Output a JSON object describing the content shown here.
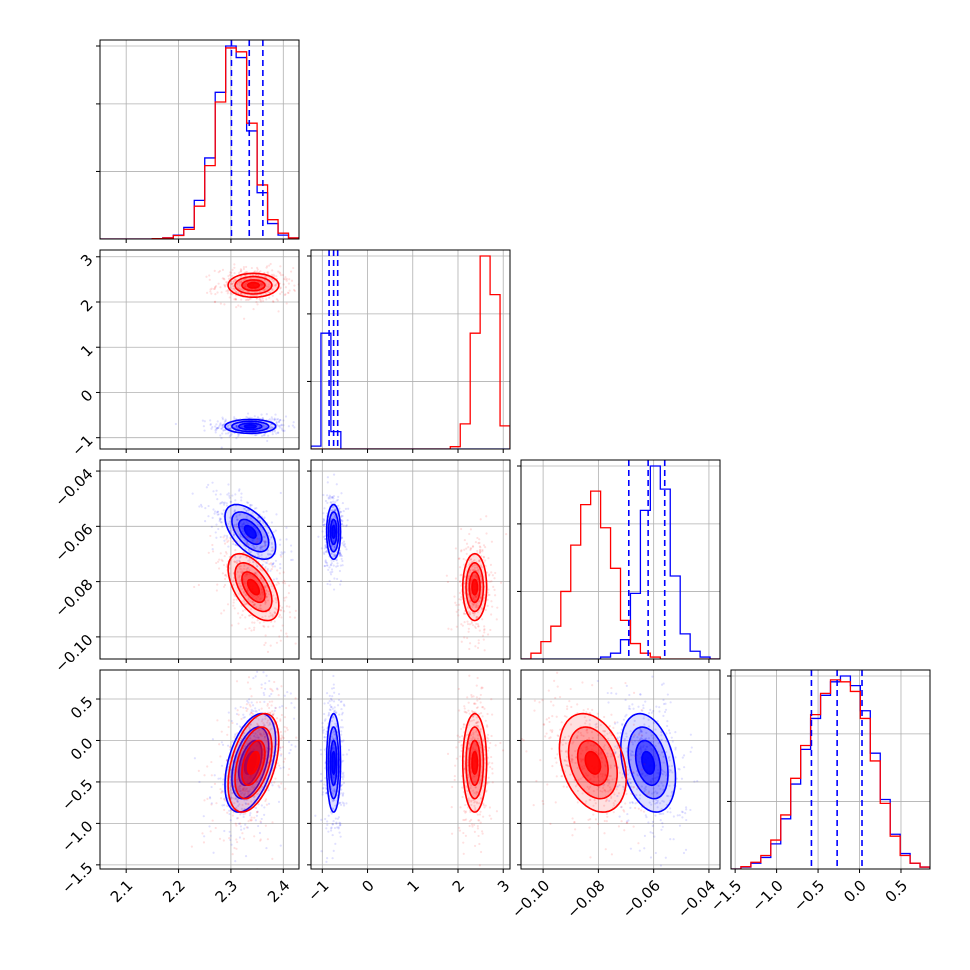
{
  "chart_data": {
    "type": "corner",
    "title": "",
    "grid": true,
    "legend": "none",
    "colors": {
      "series_a": "#0000ff",
      "series_b": "#ff0000",
      "grid": "#b0b0b0"
    },
    "parameters": [
      {
        "key": "p0",
        "label": "",
        "range": [
          2.05,
          2.43
        ],
        "ticks": [
          2.1,
          2.2,
          2.3,
          2.4
        ],
        "tick_labels": [
          "2.1",
          "2.2",
          "2.3",
          "2.4"
        ]
      },
      {
        "key": "p1",
        "label": "",
        "range": [
          -1.25,
          3.15
        ],
        "ticks": [
          -1,
          0,
          1,
          2,
          3
        ],
        "tick_labels": [
          "−1",
          "0",
          "1",
          "2",
          "3"
        ]
      },
      {
        "key": "p2",
        "label": "",
        "range": [
          -0.108,
          -0.036
        ],
        "ticks": [
          -0.1,
          -0.08,
          -0.06,
          -0.04
        ],
        "tick_labels": [
          "−0.10",
          "−0.08",
          "−0.06",
          "−0.04"
        ]
      },
      {
        "key": "p3",
        "label": "",
        "range": [
          -1.55,
          0.85
        ],
        "ticks": [
          -1.5,
          -1.0,
          -0.5,
          0.0,
          0.5
        ],
        "tick_labels": [
          "−1.5",
          "−1.0",
          "−0.5",
          "0.0",
          "0.5"
        ]
      }
    ],
    "series": [
      {
        "name": "",
        "color": "#0000ff",
        "mean": [
          2.337,
          -0.75,
          -0.062,
          -0.27
        ],
        "sd": [
          0.022,
          0.07,
          0.0045,
          0.27
        ],
        "quantiles": [
          [
            2.301,
            2.335,
            2.361
          ],
          [
            -0.85,
            -0.75,
            -0.66
          ],
          [
            -0.069,
            -0.062,
            -0.056
          ],
          [
            -0.58,
            -0.27,
            0.03
          ]
        ],
        "corr": [
          [
            1,
            0,
            -0.55,
            0.45
          ],
          [
            0,
            1,
            0,
            0
          ],
          [
            -0.55,
            0,
            1,
            -0.3
          ],
          [
            0.45,
            0,
            -0.3,
            1
          ]
        ]
      },
      {
        "name": "",
        "color": "#ff0000",
        "mean": [
          2.343,
          2.37,
          -0.082,
          -0.27
        ],
        "sd": [
          0.022,
          0.12,
          0.0055,
          0.27
        ],
        "quantiles": [
          [
            2.31,
            2.343,
            2.37
          ],
          [
            2.25,
            2.37,
            2.49
          ],
          [
            -0.088,
            -0.082,
            -0.076
          ],
          [
            -0.58,
            -0.27,
            0.03
          ]
        ],
        "corr": [
          [
            1,
            0,
            -0.55,
            0.45
          ],
          [
            0,
            1,
            0,
            0
          ],
          [
            -0.55,
            0,
            1,
            -0.3
          ],
          [
            0.45,
            0,
            -0.3,
            1
          ]
        ]
      }
    ],
    "histograms": [
      {
        "param": "p0",
        "bins": [
          2.05,
          2.07,
          2.09,
          2.11,
          2.13,
          2.15,
          2.17,
          2.19,
          2.21,
          2.23,
          2.25,
          2.27,
          2.29,
          2.31,
          2.33,
          2.35,
          2.37,
          2.39,
          2.41,
          2.43
        ],
        "blue": [
          0,
          0,
          0,
          0,
          0,
          0.002,
          0.006,
          0.02,
          0.06,
          0.2,
          0.42,
          0.76,
          1.0,
          0.94,
          0.56,
          0.24,
          0.08,
          0.02,
          0.005
        ],
        "red": [
          0,
          0,
          0,
          0,
          0,
          0.002,
          0.006,
          0.018,
          0.05,
          0.17,
          0.38,
          0.71,
          0.99,
          0.97,
          0.6,
          0.28,
          0.1,
          0.03,
          0.006
        ],
        "quantile_lines": [
          2.301,
          2.335,
          2.361
        ]
      },
      {
        "param": "p1",
        "bins": [
          -1.25,
          -1.03,
          -0.81,
          -0.59,
          -0.37,
          -0.15,
          0.07,
          0.29,
          0.51,
          0.73,
          0.95,
          1.17,
          1.39,
          1.61,
          1.83,
          2.05,
          2.27,
          2.49,
          2.71,
          2.93,
          3.15
        ],
        "blue": [
          0.015,
          0.6,
          0.09,
          0,
          0,
          0,
          0,
          0,
          0,
          0,
          0,
          0,
          0,
          0,
          0,
          0,
          0,
          0,
          0,
          0
        ],
        "red": [
          0,
          0,
          0,
          0,
          0,
          0,
          0,
          0,
          0,
          0,
          0,
          0,
          0,
          0,
          0.012,
          0.13,
          0.6,
          1.0,
          0.8,
          0.12
        ],
        "quantile_lines": [
          -0.85,
          -0.75,
          -0.66
        ]
      },
      {
        "param": "p2",
        "bins": [
          -0.108,
          -0.1044,
          -0.1008,
          -0.0972,
          -0.0936,
          -0.09,
          -0.0864,
          -0.0828,
          -0.0792,
          -0.0756,
          -0.072,
          -0.0684,
          -0.0648,
          -0.0612,
          -0.0576,
          -0.054,
          -0.0504,
          -0.0468,
          -0.0432,
          -0.0396,
          -0.036
        ],
        "blue": [
          0,
          0,
          0,
          0,
          0,
          0,
          0,
          0,
          0.01,
          0.03,
          0.1,
          0.34,
          0.77,
          1.0,
          0.88,
          0.43,
          0.13,
          0.04,
          0.01,
          0
        ],
        "red": [
          0,
          0.03,
          0.09,
          0.17,
          0.35,
          0.59,
          0.8,
          0.87,
          0.68,
          0.47,
          0.2,
          0.08,
          0.03,
          0.01,
          0,
          0,
          0,
          0,
          0,
          0
        ],
        "quantile_lines": [
          -0.069,
          -0.062,
          -0.056
        ]
      },
      {
        "param": "p3",
        "bins": [
          -1.55,
          -1.43,
          -1.31,
          -1.19,
          -1.07,
          -0.95,
          -0.83,
          -0.71,
          -0.59,
          -0.47,
          -0.35,
          -0.23,
          -0.11,
          0.01,
          0.13,
          0.25,
          0.37,
          0.49,
          0.61,
          0.73,
          0.85
        ],
        "blue": [
          0,
          0.01,
          0.03,
          0.06,
          0.13,
          0.26,
          0.44,
          0.62,
          0.78,
          0.9,
          0.97,
          1.0,
          0.95,
          0.82,
          0.6,
          0.36,
          0.18,
          0.08,
          0.03,
          0.01
        ],
        "red": [
          0,
          0.012,
          0.035,
          0.07,
          0.15,
          0.28,
          0.47,
          0.64,
          0.8,
          0.91,
          0.98,
          0.97,
          0.92,
          0.78,
          0.56,
          0.34,
          0.17,
          0.07,
          0.03,
          0.01
        ],
        "quantile_lines": [
          -0.58,
          -0.27,
          0.03
        ]
      }
    ]
  }
}
